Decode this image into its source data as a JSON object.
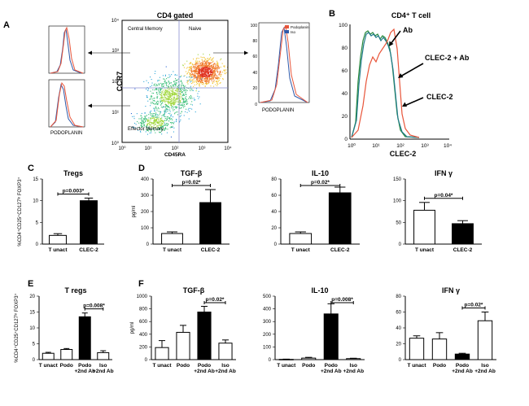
{
  "panels": {
    "A": {
      "label": "A",
      "dot_title": "CD4 gated",
      "quadrants": [
        "Central Memory",
        "Naive",
        "Effector Memory"
      ],
      "xlabel": "CD45RA",
      "ylabel": "CCR7",
      "log_ticks": [
        "10⁰",
        "10¹",
        "10²",
        "10³",
        "10⁴"
      ],
      "hist_xlabel": "PODOPLANIN",
      "legend": [
        "Podoplanin",
        "Iso"
      ],
      "legend_colors": [
        "#e8553a",
        "#2f58a8"
      ],
      "hist_yticks": [
        "0",
        "20",
        "40",
        "60",
        "80",
        "100"
      ]
    },
    "B": {
      "label": "B",
      "title": "CD4⁺ T cell",
      "xlabel": "CLEC-2",
      "annotations": [
        "Ab",
        "CLEC-2 + Ab",
        "CLEC-2"
      ],
      "yticks": [
        "0",
        "20",
        "40",
        "60",
        "80",
        "100"
      ],
      "xticks": [
        "10⁰",
        "10¹",
        "10²",
        "10³",
        "10⁴"
      ],
      "colors": [
        "#2a8a3c",
        "#1f7a8a",
        "#e8553a"
      ]
    },
    "C": {
      "label": "C"
    },
    "D": {
      "label": "D"
    },
    "E": {
      "label": "E"
    },
    "F": {
      "label": "F"
    }
  },
  "chart_data": [
    {
      "id": "C",
      "type": "bar",
      "title": "Tregs",
      "ylabel": "%CD4⁺CD25⁺CD127ˡᵒ FOXP3⁺",
      "categories": [
        "T unact",
        "CLEC-2"
      ],
      "values": [
        2,
        10
      ],
      "errors": [
        0.4,
        0.6
      ],
      "fills": [
        "white",
        "black"
      ],
      "ylim": [
        0,
        15
      ],
      "yticks": [
        "0",
        "5",
        "10",
        "15"
      ],
      "sig": [
        {
          "from": 0,
          "to": 1,
          "text": "p=0.003*"
        }
      ]
    },
    {
      "id": "D1",
      "type": "bar",
      "title": "TGF-β",
      "ylabel": "pg/ml",
      "categories": [
        "T unact",
        "CLEC-2"
      ],
      "values": [
        65,
        255
      ],
      "errors": [
        10,
        80
      ],
      "fills": [
        "white",
        "black"
      ],
      "ylim": [
        0,
        400
      ],
      "yticks": [
        "0",
        "100",
        "200",
        "300",
        "400"
      ],
      "sig": [
        {
          "from": 0,
          "to": 1,
          "text": "p=0.02*"
        }
      ]
    },
    {
      "id": "D2",
      "type": "bar",
      "title": "IL-10",
      "ylabel": "",
      "categories": [
        "T unact",
        "CLEC-2"
      ],
      "values": [
        13,
        63
      ],
      "errors": [
        2,
        7
      ],
      "fills": [
        "white",
        "black"
      ],
      "ylim": [
        0,
        80
      ],
      "yticks": [
        "0",
        "20",
        "40",
        "60",
        "80"
      ],
      "sig": [
        {
          "from": 0,
          "to": 1,
          "text": "p=0.02*"
        }
      ]
    },
    {
      "id": "D3",
      "type": "bar",
      "title": "IFN γ",
      "ylabel": "",
      "categories": [
        "T unact",
        "CLEC-2"
      ],
      "values": [
        78,
        47
      ],
      "errors": [
        18,
        7
      ],
      "fills": [
        "white",
        "black"
      ],
      "ylim": [
        0,
        150
      ],
      "yticks": [
        "0",
        "50",
        "100",
        "150"
      ],
      "sig": [
        {
          "from": 0,
          "to": 1,
          "text": "p=0.04*"
        }
      ]
    },
    {
      "id": "E",
      "type": "bar",
      "title": "T regs",
      "ylabel": "%CD4⁺CD25⁺CD127ˡᵒ FOXP3⁺",
      "categories": [
        "T unact",
        "Podo",
        "Podo\n+2nd Ab",
        "Iso\n+2nd Ab"
      ],
      "values": [
        2,
        3.2,
        13.5,
        2.2
      ],
      "errors": [
        0.3,
        0.3,
        1.2,
        0.6
      ],
      "fills": [
        "white",
        "white",
        "black",
        "white"
      ],
      "ylim": [
        0,
        20
      ],
      "yticks": [
        "0",
        "5",
        "10",
        "15",
        "20"
      ],
      "sig": [
        {
          "from": 2,
          "to": 3,
          "text": "p=0.008*"
        }
      ]
    },
    {
      "id": "F1",
      "type": "bar",
      "title": "TGF-β",
      "ylabel": "pg/ml",
      "categories": [
        "T unact",
        "Podo",
        "Podo\n+2nd Ab",
        "Iso\n+2nd Ab"
      ],
      "values": [
        190,
        430,
        750,
        260
      ],
      "errors": [
        110,
        110,
        90,
        50
      ],
      "fills": [
        "white",
        "white",
        "black",
        "white"
      ],
      "ylim": [
        0,
        1000
      ],
      "yticks": [
        "0",
        "200",
        "400",
        "600",
        "800",
        "1000"
      ],
      "sig": [
        {
          "from": 2,
          "to": 3,
          "text": "p=0.02*"
        }
      ]
    },
    {
      "id": "F2",
      "type": "bar",
      "title": "IL-10",
      "ylabel": "",
      "categories": [
        "T unact",
        "Podo",
        "Podo\n+2nd Ab",
        "Iso\n+2nd Ab"
      ],
      "values": [
        2,
        12,
        360,
        8
      ],
      "errors": [
        2,
        6,
        80,
        3
      ],
      "fills": [
        "white",
        "white",
        "black",
        "white"
      ],
      "ylim": [
        0,
        500
      ],
      "yticks": [
        "0",
        "100",
        "200",
        "300",
        "400",
        "500"
      ],
      "sig": [
        {
          "from": 2,
          "to": 3,
          "text": "p=0.008*"
        }
      ]
    },
    {
      "id": "F3",
      "type": "bar",
      "title": "IFN γ",
      "ylabel": "",
      "categories": [
        "T unact",
        "Podo",
        "Podo\n+2nd Ab",
        "Iso\n+2nd Ab"
      ],
      "values": [
        27,
        26,
        7,
        49
      ],
      "errors": [
        3,
        8,
        1,
        11
      ],
      "fills": [
        "white",
        "white",
        "black",
        "white"
      ],
      "ylim": [
        0,
        80
      ],
      "yticks": [
        "0",
        "20",
        "40",
        "60",
        "80"
      ],
      "sig": [
        {
          "from": 2,
          "to": 3,
          "text": "p=0.02*"
        }
      ]
    }
  ]
}
